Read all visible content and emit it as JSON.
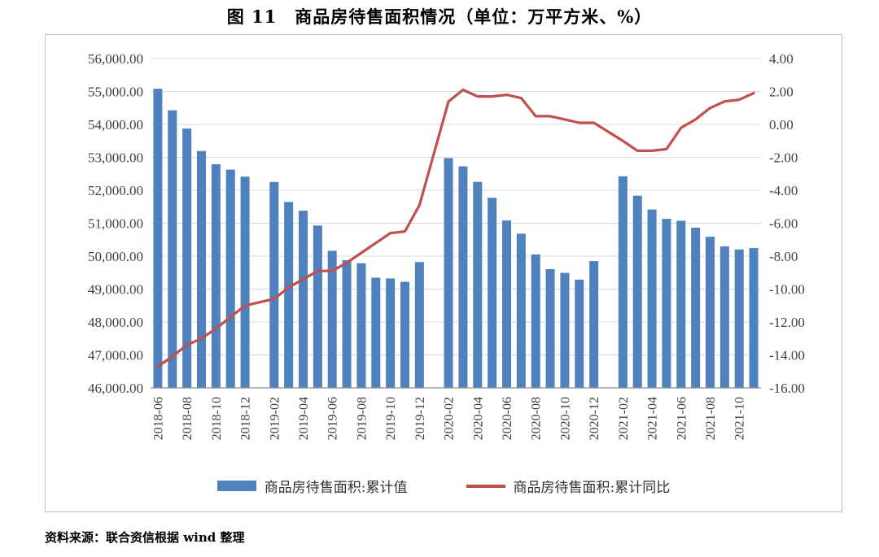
{
  "chart_data": {
    "type": "combo",
    "title": "图 11　商品房待售面积情况（单位：万平方米、%）",
    "categories": [
      "2018-06",
      "2018-07",
      "2018-08",
      "2018-09",
      "2018-10",
      "2018-11",
      "2018-12",
      "2019-01",
      "2019-02",
      "2019-03",
      "2019-04",
      "2019-05",
      "2019-06",
      "2019-07",
      "2019-08",
      "2019-09",
      "2019-10",
      "2019-11",
      "2019-12",
      "2020-01",
      "2020-02",
      "2020-03",
      "2020-04",
      "2020-05",
      "2020-06",
      "2020-07",
      "2020-08",
      "2020-09",
      "2020-10",
      "2020-11",
      "2020-12",
      "2021-01",
      "2021-02",
      "2021-03",
      "2021-04",
      "2021-05",
      "2021-06",
      "2021-07",
      "2021-08",
      "2021-09",
      "2021-10",
      "2021-11"
    ],
    "series": [
      {
        "name": "商品房待售面积:累计值",
        "chart_type": "bar",
        "axis": "left",
        "color": "#4F81BD",
        "values": [
          55083,
          54428,
          53873,
          53191,
          52789,
          52627,
          52414,
          null,
          52251,
          51646,
          51380,
          50928,
          50162,
          49876,
          49784,
          49346,
          49323,
          49221,
          49821,
          null,
          52976,
          52726,
          52255,
          51773,
          51083,
          50682,
          50052,
          49606,
          49492,
          49287,
          49850,
          null,
          52425,
          51835,
          51417,
          51133,
          51075,
          50864,
          50589,
          50295,
          50203,
          50245
        ]
      },
      {
        "name": "商品房待售面积:累计同比",
        "chart_type": "line",
        "axis": "right",
        "color": "#C0504D",
        "values": [
          -14.7,
          -14.1,
          -13.4,
          -13.0,
          -12.4,
          -11.7,
          -11.0,
          null,
          -10.6,
          -9.9,
          -9.4,
          -8.9,
          -8.9,
          -8.4,
          -7.8,
          -7.2,
          -6.6,
          -6.5,
          -4.9,
          null,
          1.4,
          2.1,
          1.7,
          1.7,
          1.8,
          1.6,
          0.5,
          0.5,
          0.3,
          0.1,
          0.1,
          null,
          -1.0,
          -1.6,
          -1.6,
          -1.5,
          -0.2,
          0.3,
          1.0,
          1.4,
          1.5,
          1.9
        ]
      }
    ],
    "left_axis": {
      "min": 46000,
      "max": 56000,
      "step": 1000,
      "tick_labels": [
        "56,000.00",
        "55,000.00",
        "54,000.00",
        "53,000.00",
        "52,000.00",
        "51,000.00",
        "50,000.00",
        "49,000.00",
        "48,000.00",
        "47,000.00",
        "46,000.00"
      ]
    },
    "right_axis": {
      "min": -16,
      "max": 4,
      "step": 2,
      "tick_labels": [
        "4.00",
        "2.00",
        "0.00",
        "-2.00",
        "-4.00",
        "-6.00",
        "-8.00",
        "-10.00",
        "-12.00",
        "-14.00",
        "-16.00"
      ]
    },
    "x_tick_labels": [
      "2018-06",
      "2018-08",
      "2018-10",
      "2018-12",
      "2019-02",
      "2019-04",
      "2019-06",
      "2019-08",
      "2019-10",
      "2019-12",
      "2020-02",
      "2020-04",
      "2020-06",
      "2020-08",
      "2020-10",
      "2020-12",
      "2021-02",
      "2021-04",
      "2021-06",
      "2021-08",
      "2021-10"
    ],
    "grid_color": "#D9D9D9",
    "axis_line_color": "#8C8C8C",
    "axis_text_color": "#3F3F3F",
    "legend_position": "bottom",
    "grid": true
  },
  "source_note": "资料来源：联合资信根据 wind 整理"
}
